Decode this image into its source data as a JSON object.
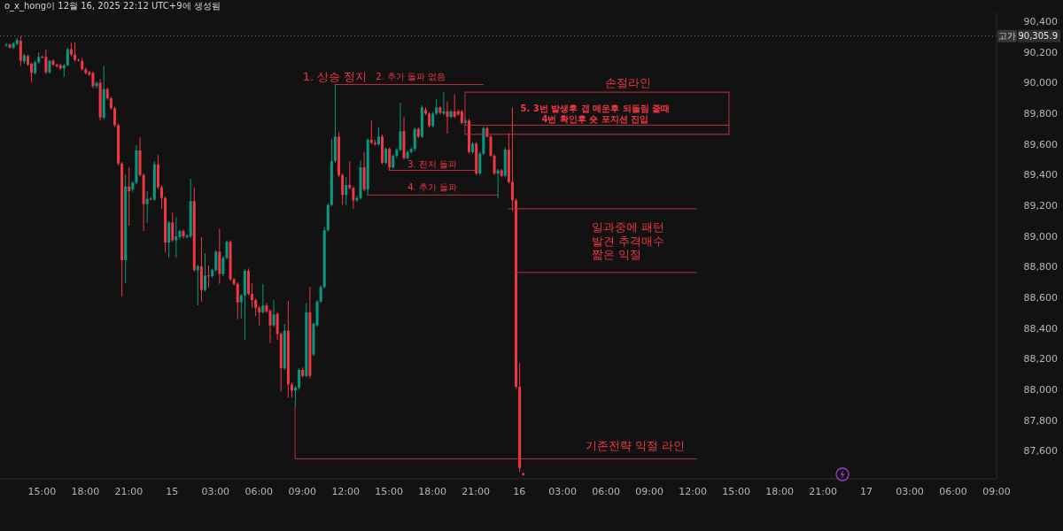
{
  "chart_data": {
    "type": "candlestick",
    "x": [
      "2025-12-14T12:30",
      "2025-12-14T12:45",
      "2025-12-14T13:00",
      "2025-12-14T13:15",
      "2025-12-14T13:30",
      "2025-12-14T13:45",
      "2025-12-14T14:00",
      "2025-12-14T14:15",
      "2025-12-14T14:30",
      "2025-12-14T14:45",
      "2025-12-14T15:00",
      "2025-12-14T15:15",
      "2025-12-14T15:30",
      "2025-12-14T15:45",
      "2025-12-14T16:00",
      "2025-12-14T16:15",
      "2025-12-14T16:30",
      "2025-12-14T16:45",
      "2025-12-14T17:00",
      "2025-12-14T17:15",
      "2025-12-14T17:30",
      "2025-12-14T17:45",
      "2025-12-14T18:00",
      "2025-12-14T18:15",
      "2025-12-14T18:30",
      "2025-12-14T18:45",
      "2025-12-14T19:00",
      "2025-12-14T19:15",
      "2025-12-14T19:30",
      "2025-12-14T19:45",
      "2025-12-14T20:00",
      "2025-12-14T20:15",
      "2025-12-14T20:30",
      "2025-12-14T20:45",
      "2025-12-14T21:00",
      "2025-12-14T21:15",
      "2025-12-14T21:30",
      "2025-12-14T21:45",
      "2025-12-14T22:00",
      "2025-12-14T22:15",
      "2025-12-14T22:30",
      "2025-12-14T22:45",
      "2025-12-14T23:00",
      "2025-12-14T23:15",
      "2025-12-14T23:30",
      "2025-12-14T23:45",
      "2025-12-15T00:00",
      "2025-12-15T00:15",
      "2025-12-15T00:30",
      "2025-12-15T00:45",
      "2025-12-15T01:00",
      "2025-12-15T01:15",
      "2025-12-15T01:30",
      "2025-12-15T01:45",
      "2025-12-15T02:00",
      "2025-12-15T02:15",
      "2025-12-15T02:30",
      "2025-12-15T02:45",
      "2025-12-15T03:00",
      "2025-12-15T03:15",
      "2025-12-15T03:30",
      "2025-12-15T03:45",
      "2025-12-15T04:00",
      "2025-12-15T04:15",
      "2025-12-15T04:30",
      "2025-12-15T04:45",
      "2025-12-15T05:00",
      "2025-12-15T05:15",
      "2025-12-15T05:30",
      "2025-12-15T05:45",
      "2025-12-15T06:00",
      "2025-12-15T06:15",
      "2025-12-15T06:30",
      "2025-12-15T06:45",
      "2025-12-15T07:00",
      "2025-12-15T07:15",
      "2025-12-15T07:30",
      "2025-12-15T07:45",
      "2025-12-15T08:00",
      "2025-12-15T08:15",
      "2025-12-15T08:30",
      "2025-12-15T08:45",
      "2025-12-15T09:00",
      "2025-12-15T09:15",
      "2025-12-15T09:30",
      "2025-12-15T09:45",
      "2025-12-15T10:00",
      "2025-12-15T10:15",
      "2025-12-15T10:30",
      "2025-12-15T10:45",
      "2025-12-15T11:00",
      "2025-12-15T11:15",
      "2025-12-15T11:30",
      "2025-12-15T11:45",
      "2025-12-15T12:00",
      "2025-12-15T12:15",
      "2025-12-15T12:30",
      "2025-12-15T12:45",
      "2025-12-15T13:00",
      "2025-12-15T13:15",
      "2025-12-15T13:30",
      "2025-12-15T13:45",
      "2025-12-15T14:00",
      "2025-12-15T14:15",
      "2025-12-15T14:30",
      "2025-12-15T14:45",
      "2025-12-15T15:00",
      "2025-12-15T15:15",
      "2025-12-15T15:30",
      "2025-12-15T15:45",
      "2025-12-15T16:00",
      "2025-12-15T16:15",
      "2025-12-15T16:30",
      "2025-12-15T16:45",
      "2025-12-15T17:00",
      "2025-12-15T17:15",
      "2025-12-15T17:30",
      "2025-12-15T17:45",
      "2025-12-15T18:00",
      "2025-12-15T18:15",
      "2025-12-15T18:30",
      "2025-12-15T18:45",
      "2025-12-15T19:00",
      "2025-12-15T19:15",
      "2025-12-15T19:30",
      "2025-12-15T19:45",
      "2025-12-15T20:00",
      "2025-12-15T20:15",
      "2025-12-15T20:30",
      "2025-12-15T20:45",
      "2025-12-15T21:00",
      "2025-12-15T21:15",
      "2025-12-15T21:30",
      "2025-12-15T21:45",
      "2025-12-15T22:00",
      "2025-12-15T22:15",
      "2025-12-15T22:30",
      "2025-12-15T22:45",
      "2025-12-15T23:00",
      "2025-12-15T23:15",
      "2025-12-15T23:30",
      "2025-12-15T23:45",
      "2025-12-16T00:00",
      "2025-12-16T00:15"
    ],
    "ohlc": [
      [
        90245,
        90260,
        90235,
        90250
      ],
      [
        90250,
        90255,
        90225,
        90230
      ],
      [
        90230,
        90265,
        90220,
        90260
      ],
      [
        90255,
        90295,
        90245,
        90280
      ],
      [
        90275,
        90305.9,
        90110,
        90145
      ],
      [
        90140,
        90190,
        90125,
        90180
      ],
      [
        90175,
        90185,
        90110,
        90120
      ],
      [
        90125,
        90135,
        90005,
        90065
      ],
      [
        90065,
        90145,
        90055,
        90135
      ],
      [
        90135,
        90200,
        90125,
        90170
      ],
      [
        90170,
        90180,
        90160,
        90165
      ],
      [
        90170,
        90220,
        90060,
        90070
      ],
      [
        90070,
        90150,
        90060,
        90145
      ],
      [
        90145,
        90155,
        90110,
        90120
      ],
      [
        90120,
        90125,
        90100,
        90110
      ],
      [
        90115,
        90125,
        90085,
        90095
      ],
      [
        90095,
        90125,
        90040,
        90115
      ],
      [
        90115,
        90230,
        90110,
        90220
      ],
      [
        90220,
        90260,
        90175,
        90185
      ],
      [
        90185,
        90265,
        90140,
        90150
      ],
      [
        90150,
        90160,
        90140,
        90145
      ],
      [
        90145,
        90160,
        90080,
        90090
      ],
      [
        90090,
        90100,
        90055,
        90065
      ],
      [
        90070,
        90080,
        90045,
        90055
      ],
      [
        90065,
        90075,
        89965,
        89980
      ],
      [
        89980,
        90010,
        89965,
        90000
      ],
      [
        90000,
        90025,
        89755,
        89775
      ],
      [
        89775,
        90110,
        89760,
        89960
      ],
      [
        89960,
        89970,
        89890,
        89900
      ],
      [
        89900,
        89910,
        89825,
        89835
      ],
      [
        89835,
        89845,
        89715,
        89725
      ],
      [
        89725,
        89735,
        89465,
        89475
      ],
      [
        89475,
        89485,
        88610,
        88845
      ],
      [
        88845,
        89405,
        88695,
        89325
      ],
      [
        89325,
        89450,
        89070,
        89295
      ],
      [
        89305,
        89360,
        89290,
        89350
      ],
      [
        89350,
        89595,
        89340,
        89560
      ],
      [
        89560,
        89645,
        89390,
        89400
      ],
      [
        89400,
        89410,
        89035,
        89210
      ],
      [
        89210,
        89295,
        89090,
        89245
      ],
      [
        89245,
        89255,
        89235,
        89240
      ],
      [
        89240,
        89490,
        89230,
        89470
      ],
      [
        89470,
        89530,
        89310,
        89320
      ],
      [
        89320,
        89330,
        89180,
        89250
      ],
      [
        89250,
        89260,
        88895,
        88960
      ],
      [
        88960,
        89100,
        88860,
        89090
      ],
      [
        89090,
        89155,
        88965,
        88975
      ],
      [
        88975,
        89125,
        88860,
        89000
      ],
      [
        88995,
        89045,
        88980,
        89035
      ],
      [
        89035,
        89045,
        88985,
        89000
      ],
      [
        88995,
        89015,
        88985,
        89005
      ],
      [
        89000,
        89375,
        88990,
        89230
      ],
      [
        89230,
        89320,
        88770,
        88780
      ],
      [
        88780,
        88815,
        88550,
        88805
      ],
      [
        88805,
        88995,
        88575,
        88650
      ],
      [
        88650,
        88890,
        88640,
        88745
      ],
      [
        88745,
        88810,
        88665,
        88740
      ],
      [
        88740,
        88790,
        88730,
        88780
      ],
      [
        88780,
        88910,
        88770,
        88900
      ],
      [
        88900,
        89050,
        88690,
        88755
      ],
      [
        88755,
        88870,
        88740,
        88860
      ],
      [
        88860,
        88975,
        88850,
        88965
      ],
      [
        88965,
        88975,
        88710,
        88720
      ],
      [
        88720,
        88730,
        88680,
        88690
      ],
      [
        88690,
        88700,
        88460,
        88570
      ],
      [
        88570,
        88625,
        88465,
        88615
      ],
      [
        88615,
        88785,
        88325,
        88775
      ],
      [
        88775,
        88790,
        88615,
        88625
      ],
      [
        88625,
        88695,
        88535,
        88585
      ],
      [
        88585,
        88595,
        88480,
        88535
      ],
      [
        88535,
        88545,
        88420,
        88505
      ],
      [
        88505,
        88690,
        88495,
        88550
      ],
      [
        88550,
        88565,
        88500,
        88510
      ],
      [
        88515,
        88525,
        88305,
        88420
      ],
      [
        88420,
        88585,
        88410,
        88490
      ],
      [
        88495,
        88505,
        88325,
        88365
      ],
      [
        88365,
        88375,
        87990,
        88140
      ],
      [
        88140,
        88430,
        88130,
        88385
      ],
      [
        88385,
        88580,
        87950,
        88035
      ],
      [
        88035,
        88045,
        87950,
        87995
      ],
      [
        87995,
        88025,
        87895,
        88015
      ],
      [
        88015,
        88140,
        88000,
        88130
      ],
      [
        88130,
        88145,
        88080,
        88090
      ],
      [
        88090,
        88565,
        88080,
        88505
      ],
      [
        88505,
        88670,
        88075,
        88090
      ],
      [
        88230,
        88440,
        88220,
        88430
      ],
      [
        88420,
        88585,
        88410,
        88575
      ],
      [
        88575,
        88680,
        88565,
        88670
      ],
      [
        88670,
        89060,
        88660,
        89040
      ],
      [
        89040,
        89215,
        89030,
        89205
      ],
      [
        89205,
        89635,
        89195,
        89490
      ],
      [
        89490,
        89990,
        89480,
        89650
      ],
      [
        89650,
        89680,
        89385,
        89400
      ],
      [
        89400,
        89410,
        89205,
        89270
      ],
      [
        89270,
        89385,
        89205,
        89335
      ],
      [
        89335,
        89490,
        89305,
        89315
      ],
      [
        89315,
        89325,
        89180,
        89235
      ],
      [
        89235,
        89265,
        89225,
        89250
      ],
      [
        89250,
        89495,
        89240,
        89450
      ],
      [
        89450,
        89550,
        89295,
        89305
      ],
      [
        89305,
        89640,
        89270,
        89630
      ],
      [
        89630,
        89755,
        89600,
        89610
      ],
      [
        89610,
        89630,
        89590,
        89600
      ],
      [
        89600,
        89710,
        89590,
        89650
      ],
      [
        89650,
        89665,
        89470,
        89480
      ],
      [
        89480,
        89580,
        89470,
        89570
      ],
      [
        89570,
        89580,
        89430,
        89450
      ],
      [
        89450,
        89535,
        89440,
        89525
      ],
      [
        89525,
        89575,
        89510,
        89565
      ],
      [
        89565,
        89870,
        89555,
        89685
      ],
      [
        89685,
        89780,
        89500,
        89510
      ],
      [
        89510,
        89560,
        89500,
        89550
      ],
      [
        89550,
        89580,
        89540,
        89570
      ],
      [
        89570,
        89710,
        89555,
        89700
      ],
      [
        89700,
        89710,
        89640,
        89650
      ],
      [
        89650,
        89855,
        89640,
        89840
      ],
      [
        89825,
        89840,
        89790,
        89800
      ],
      [
        89800,
        89810,
        89710,
        89720
      ],
      [
        89720,
        89810,
        89710,
        89800
      ],
      [
        89800,
        89895,
        89790,
        89840
      ],
      [
        89840,
        89850,
        89795,
        89805
      ],
      [
        89800,
        89940,
        89790,
        89815
      ],
      [
        89815,
        89880,
        89670,
        89780
      ],
      [
        89780,
        89825,
        89770,
        89815
      ],
      [
        89815,
        89925,
        89770,
        89780
      ],
      [
        89815,
        89825,
        89785,
        89795
      ],
      [
        89815,
        89825,
        89730,
        89740
      ],
      [
        89740,
        89770,
        89730,
        89755
      ],
      [
        89755,
        89765,
        89540,
        89550
      ],
      [
        89550,
        89615,
        89540,
        89605
      ],
      [
        89605,
        89615,
        89400,
        89410
      ],
      [
        89410,
        89550,
        89400,
        89540
      ],
      [
        89540,
        89715,
        89530,
        89705
      ],
      [
        89705,
        89715,
        89645,
        89650
      ],
      [
        89650,
        89660,
        89520,
        89525
      ],
      [
        89525,
        89535,
        89400,
        89410
      ],
      [
        89410,
        89440,
        89250,
        89430
      ],
      [
        89430,
        89440,
        89385,
        89395
      ],
      [
        89395,
        89580,
        89385,
        89565
      ],
      [
        89565,
        89675,
        89345,
        89355
      ],
      [
        89355,
        89840,
        89165,
        89235
      ],
      [
        89235,
        89245,
        88010,
        88020
      ],
      [
        88020,
        88175,
        87465,
        87490
      ],
      [
        87455,
        87460,
        87440,
        87445
      ]
    ],
    "colors": [
      "#089981",
      "#f23645",
      "#089981",
      "#089981",
      "#f23645",
      "#089981",
      "#f23645",
      "#f23645",
      "#089981",
      "#089981",
      "#f23645",
      "#f23645",
      "#089981",
      "#f23645",
      "#f23645",
      "#f23645",
      "#089981",
      "#089981",
      "#f23645",
      "#f23645",
      "#f23645",
      "#f23645",
      "#f23645",
      "#f23645",
      "#f23645",
      "#089981",
      "#f23645",
      "#089981",
      "#f23645",
      "#f23645",
      "#f23645",
      "#f23645",
      "#f23645",
      "#089981",
      "#f23645",
      "#089981",
      "#089981",
      "#f23645",
      "#f23645",
      "#089981",
      "#f23645",
      "#089981",
      "#f23645",
      "#f23645",
      "#f23645",
      "#089981",
      "#f23645",
      "#089981",
      "#089981",
      "#f23645",
      "#089981",
      "#089981",
      "#f23645",
      "#089981",
      "#f23645",
      "#089981",
      "#f23645",
      "#089981",
      "#089981",
      "#f23645",
      "#089981",
      "#089981",
      "#f23645",
      "#f23645",
      "#f23645",
      "#089981",
      "#089981",
      "#f23645",
      "#f23645",
      "#f23645",
      "#f23645",
      "#089981",
      "#f23645",
      "#f23645",
      "#089981",
      "#f23645",
      "#f23645",
      "#089981",
      "#f23645",
      "#f23645",
      "#089981",
      "#089981",
      "#f23645",
      "#089981",
      "#f23645",
      "#089981",
      "#089981",
      "#089981",
      "#089981",
      "#089981",
      "#089981",
      "#089981",
      "#f23645",
      "#f23645",
      "#089981",
      "#f23645",
      "#f23645",
      "#089981",
      "#089981",
      "#f23645",
      "#089981",
      "#f23645",
      "#f23645",
      "#089981",
      "#f23645",
      "#089981",
      "#f23645",
      "#089981",
      "#089981",
      "#089981",
      "#f23645",
      "#089981",
      "#089981",
      "#089981",
      "#f23645",
      "#089981",
      "#f23645",
      "#f23645",
      "#089981",
      "#089981",
      "#f23645",
      "#089981",
      "#f23645",
      "#089981",
      "#f23645",
      "#f23645",
      "#f23645",
      "#089981",
      "#f23645",
      "#089981",
      "#f23645",
      "#089981",
      "#089981",
      "#f23645",
      "#f23645",
      "#f23645",
      "#089981",
      "#f23645",
      "#089981",
      "#f23645",
      "#f23645",
      "#f23645",
      "#f23645",
      "#f23645"
    ],
    "series": [
      {
        "type": "line",
        "color": "#b8333b",
        "x": [
          "2025-12-15T11:15",
          "2025-12-15T21:30"
        ],
        "values": [
          89990,
          89990
        ]
      },
      {
        "type": "line",
        "color": "#b8333b",
        "x": [
          "2025-12-15T20:15",
          "2025-12-16T14:30"
        ],
        "values": [
          89940,
          89940
        ]
      },
      {
        "type": "line",
        "color": "#b8333b",
        "x": [
          "2025-12-15T20:15",
          "2025-12-16T14:30"
        ],
        "values": [
          89665,
          89665
        ]
      },
      {
        "type": "line",
        "color": "#b8333b",
        "x": [
          "2025-12-15T20:15",
          "2025-12-15T20:15"
        ],
        "values": [
          89940,
          89665
        ]
      },
      {
        "type": "line",
        "color": "#b8333b",
        "x": [
          "2025-12-16T14:30",
          "2025-12-16T14:30"
        ],
        "values": [
          89940,
          89665
        ]
      },
      {
        "type": "line",
        "color": "#b8333b",
        "x": [
          "2025-12-15T20:15",
          "2025-12-16T14:30"
        ],
        "values": [
          89725,
          89725
        ]
      },
      {
        "type": "line",
        "color": "#b8333b",
        "x": [
          "2025-12-15T15:00",
          "2025-12-15T21:00"
        ],
        "values": [
          89430,
          89430
        ]
      },
      {
        "type": "line",
        "color": "#b8333b",
        "x": [
          "2025-12-15T13:30",
          "2025-12-15T22:30"
        ],
        "values": [
          89270,
          89270
        ]
      },
      {
        "type": "line",
        "color": "#b8333b",
        "x": [
          "2025-12-15T23:15",
          "2025-12-16T12:15"
        ],
        "values": [
          89180,
          89180
        ]
      },
      {
        "type": "line",
        "color": "#b8333b",
        "x": [
          "2025-12-15T23:45",
          "2025-12-16T12:15"
        ],
        "values": [
          88765,
          88765
        ]
      },
      {
        "type": "line",
        "color": "#b8333b",
        "x": [
          "2025-12-15T08:30",
          "2025-12-15T08:30",
          "2025-12-16T12:15"
        ],
        "values": [
          87895,
          87550,
          87550
        ]
      }
    ],
    "marker": "none",
    "xlim": [
      "2025-12-14T12:06",
      "2025-12-17T09:00"
    ],
    "xticks": [
      {
        "value": "2025-12-14T15:00",
        "label": "15:00"
      },
      {
        "value": "2025-12-14T18:00",
        "label": "18:00"
      },
      {
        "value": "2025-12-14T21:00",
        "label": "21:00"
      },
      {
        "value": "2025-12-15",
        "label": "15"
      },
      {
        "value": "2025-12-15T03:00",
        "label": "03:00"
      },
      {
        "value": "2025-12-15T06:00",
        "label": "06:00"
      },
      {
        "value": "2025-12-15T09:00",
        "label": "09:00"
      },
      {
        "value": "2025-12-15T12:00",
        "label": "12:00"
      },
      {
        "value": "2025-12-15T15:00",
        "label": "15:00"
      },
      {
        "value": "2025-12-15T18:00",
        "label": "18:00"
      },
      {
        "value": "2025-12-15T21:00",
        "label": "21:00"
      },
      {
        "value": "2025-12-16",
        "label": "16"
      },
      {
        "value": "2025-12-16T03:00",
        "label": "03:00"
      },
      {
        "value": "2025-12-16T06:00",
        "label": "06:00"
      },
      {
        "value": "2025-12-16T09:00",
        "label": "09:00"
      },
      {
        "value": "2025-12-16T12:00",
        "label": "12:00"
      },
      {
        "value": "2025-12-16T15:00",
        "label": "15:00"
      },
      {
        "value": "2025-12-16T18:00",
        "label": "18:00"
      },
      {
        "value": "2025-12-16T21:00",
        "label": "21:00"
      },
      {
        "value": "2025-12-17",
        "label": "17"
      },
      {
        "value": "2025-12-17T03:00",
        "label": "03:00"
      },
      {
        "value": "2025-12-17T06:00",
        "label": "06:00"
      },
      {
        "value": "2025-12-17T09:00",
        "label": "09:00"
      }
    ],
    "ylim": [
      87420,
      90460
    ],
    "yticks": [
      {
        "value": 87600,
        "label": "87,600"
      },
      {
        "value": 87800,
        "label": "87,800"
      },
      {
        "value": 88000,
        "label": "88,000"
      },
      {
        "value": 88200,
        "label": "88,200"
      },
      {
        "value": 88400,
        "label": "88,400"
      },
      {
        "value": 88600,
        "label": "88,600"
      },
      {
        "value": 88800,
        "label": "88,800"
      },
      {
        "value": 89000,
        "label": "89,000"
      },
      {
        "value": 89200,
        "label": "89,200"
      },
      {
        "value": 89400,
        "label": "89,400"
      },
      {
        "value": 89600,
        "label": "89,600"
      },
      {
        "value": 89800,
        "label": "89,800"
      },
      {
        "value": 90000,
        "label": "90,000"
      },
      {
        "value": 90200,
        "label": "90,200"
      },
      {
        "value": 90305.9,
        "label": "90,305.9"
      },
      {
        "value": 90400,
        "label": "90,400"
      }
    ],
    "ref_lines": [
      {
        "axis": "y",
        "value": 90305.9,
        "label": "고가",
        "color": "#787b86",
        "line_style": "dotted"
      }
    ],
    "annotations": [
      {
        "text": "1. 상승 정지",
        "x": "2025-12-15T11:15",
        "y": 89990
      },
      {
        "text": "2. 추가 돌파 없음",
        "x": "2025-12-15T16:30",
        "y": 89990
      },
      {
        "text": "3. 전저 돌파",
        "x": "2025-12-15T18:00",
        "y": 89430
      },
      {
        "text": "4. 추가 돌파",
        "x": "2025-12-15T18:00",
        "y": 89270
      },
      {
        "text": "5. 3번 발생후 갭 메운후 되돌림 줄때\n4번 확인후 숏 포지션 진입",
        "x": "2025-12-16T05:15",
        "y": 89940
      },
      {
        "text": "손절라인",
        "x": "2025-12-16T07:30",
        "y": 89940
      },
      {
        "text": "일과중에 패턴\n발견 추격매수\n짧은 익절",
        "x": "2025-12-16T05:00",
        "y": 89180
      },
      {
        "text": "기존전략 익절 라인",
        "x": "2025-12-16T08:00",
        "y": 87550
      },
      "o_x_hong이 12월 16, 2025 22:12 UTC+9에 생성됨"
    ]
  }
}
